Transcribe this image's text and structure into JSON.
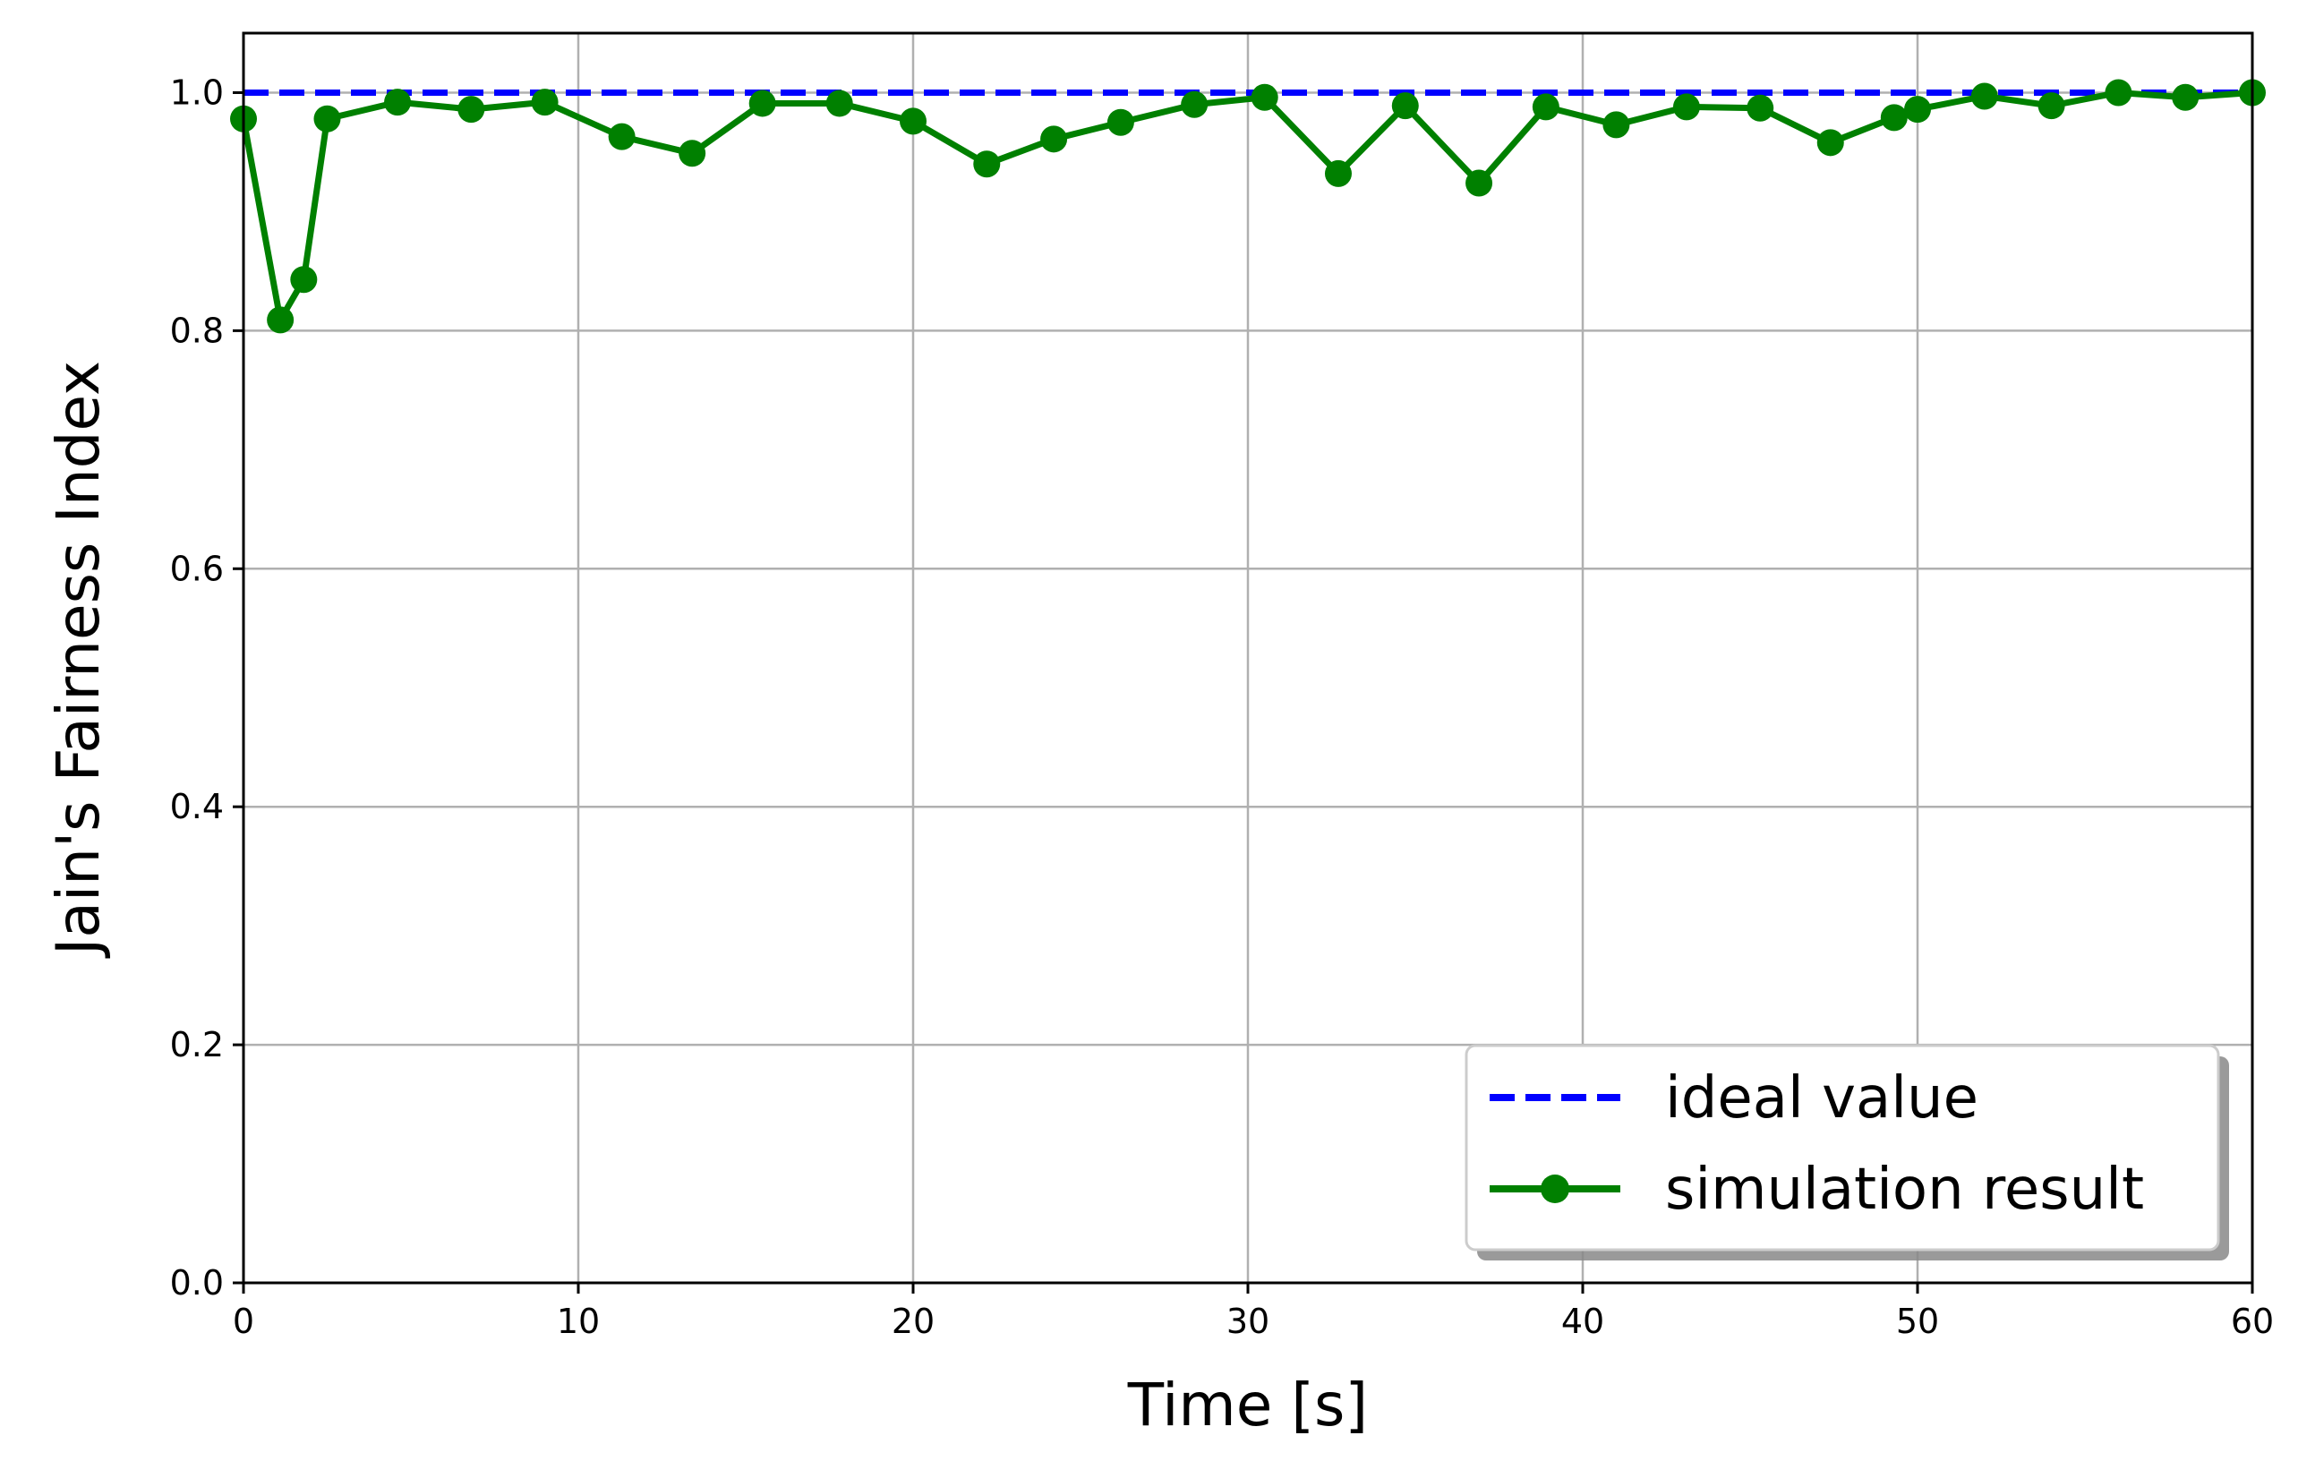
{
  "chart_data": {
    "type": "line",
    "xlabel": "Time [s]",
    "ylabel": "Jain's Fairness Index",
    "xlim": [
      0,
      60
    ],
    "ylim": [
      0,
      1.05
    ],
    "xticks": [
      0,
      10,
      20,
      30,
      40,
      50,
      60
    ],
    "xtick_labels": [
      "0",
      "10",
      "20",
      "30",
      "40",
      "50",
      "60"
    ],
    "yticks": [
      0.0,
      0.2,
      0.4,
      0.6,
      0.8,
      1.0
    ],
    "ytick_labels": [
      "0.0",
      "0.2",
      "0.4",
      "0.6",
      "0.8",
      "1.0"
    ],
    "grid": true,
    "legend_position": "lower-right",
    "series": [
      {
        "name": "ideal value",
        "style": "dashed",
        "color": "#0000ff",
        "marker": "none",
        "x": [
          0,
          60
        ],
        "y": [
          1.0,
          1.0
        ]
      },
      {
        "name": "simulation result",
        "style": "solid",
        "color": "#008000",
        "marker": "circle",
        "x": [
          0,
          1.1,
          1.8,
          2.5,
          4.6,
          6.8,
          9.0,
          11.3,
          13.4,
          15.5,
          17.8,
          20.0,
          22.2,
          24.2,
          26.2,
          28.4,
          30.5,
          32.7,
          34.7,
          36.9,
          38.9,
          41.0,
          43.1,
          45.3,
          47.4,
          49.3,
          50.0,
          52.0,
          54.0,
          56.0,
          58.0,
          60.0
        ],
        "y": [
          0.978,
          0.809,
          0.843,
          0.978,
          0.992,
          0.986,
          0.992,
          0.963,
          0.949,
          0.991,
          0.991,
          0.976,
          0.94,
          0.961,
          0.975,
          0.99,
          0.996,
          0.932,
          0.989,
          0.924,
          0.988,
          0.973,
          0.988,
          0.987,
          0.958,
          0.979,
          0.986,
          0.997,
          0.989,
          1.0,
          0.996,
          1.0
        ]
      }
    ]
  }
}
